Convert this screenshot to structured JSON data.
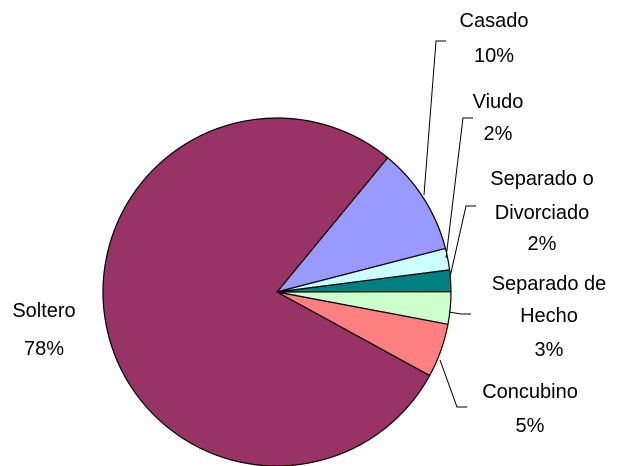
{
  "chart_data": {
    "type": "pie",
    "title": "",
    "slices": [
      {
        "label_lines": [
          "Soltero"
        ],
        "pct_text": "78%",
        "value": 78,
        "color": "#993366"
      },
      {
        "label_lines": [
          "Casado"
        ],
        "pct_text": "10%",
        "value": 10,
        "color": "#9999FF"
      },
      {
        "label_lines": [
          "Viudo"
        ],
        "pct_text": "2%",
        "value": 2,
        "color": "#CCFFFF"
      },
      {
        "label_lines": [
          "Separado o",
          "Divorciado"
        ],
        "pct_text": "2%",
        "value": 2,
        "color": "#008080"
      },
      {
        "label_lines": [
          "Separado de",
          "Hecho"
        ],
        "pct_text": "3%",
        "value": 3,
        "color": "#CCFFCC"
      },
      {
        "label_lines": [
          "Concubino"
        ],
        "pct_text": "5%",
        "value": 5,
        "color": "#FF8080"
      }
    ],
    "legend": "none",
    "labels": "outside with leader lines"
  }
}
